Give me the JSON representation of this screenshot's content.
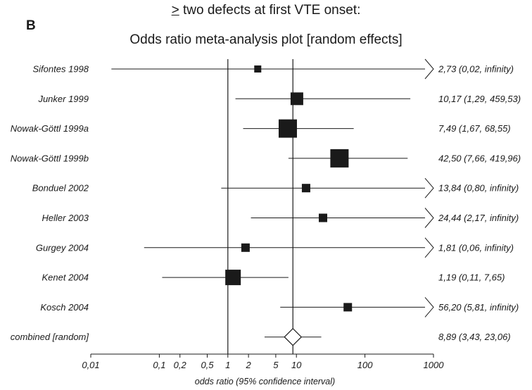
{
  "header": {
    "heading_symbol": ">",
    "heading_rest": " two defects at first VTE onset:",
    "panel_label": "B",
    "plot_title": "Odds ratio meta-analysis plot [random effects]"
  },
  "chart_data": {
    "type": "forest",
    "title": "Odds ratio meta-analysis plot [random effects]",
    "xlabel": "odds ratio (95% confidence interval)",
    "x_scale": "log",
    "xlim": [
      0.01,
      1000
    ],
    "x_ticks": [
      0.01,
      0.1,
      0.2,
      0.5,
      1,
      2,
      5,
      10,
      100,
      1000
    ],
    "x_tick_labels": [
      "0,01",
      "0,1",
      "0,2",
      "0,5",
      "1",
      "2",
      "5",
      "10",
      "100",
      "1000"
    ],
    "null_line": 1,
    "pooled_line": 8.89,
    "studies": [
      {
        "name": "Sifontes 1998",
        "or": 2.73,
        "lo": 0.02,
        "hi": null,
        "weight": 1.0,
        "label": "2,73 (0,02, infinity)"
      },
      {
        "name": "Junker 1999",
        "or": 10.17,
        "lo": 1.29,
        "hi": 459.53,
        "weight": 1.8,
        "label": "10,17 (1,29, 459,53)"
      },
      {
        "name": "Nowak-Göttl 1999a",
        "or": 7.49,
        "lo": 1.67,
        "hi": 68.55,
        "weight": 2.6,
        "label": "7,49 (1,67, 68,55)"
      },
      {
        "name": "Nowak-Göttl 1999b",
        "or": 42.5,
        "lo": 7.66,
        "hi": 419.96,
        "weight": 2.6,
        "label": "42,50 (7,66, 419,96)"
      },
      {
        "name": "Bonduel 2002",
        "or": 13.84,
        "lo": 0.8,
        "hi": null,
        "weight": 1.2,
        "label": "13,84 (0,80, infinity)"
      },
      {
        "name": "Heller 2003",
        "or": 24.44,
        "lo": 2.17,
        "hi": null,
        "weight": 1.2,
        "label": "24,44 (2,17, infinity)"
      },
      {
        "name": "Gurgey 2004",
        "or": 1.81,
        "lo": 0.06,
        "hi": null,
        "weight": 1.2,
        "label": "1,81 (0,06, infinity)"
      },
      {
        "name": "Kenet 2004",
        "or": 1.19,
        "lo": 0.11,
        "hi": 7.65,
        "weight": 2.2,
        "label": "1,19 (0,11, 7,65)"
      },
      {
        "name": "Kosch 2004",
        "or": 56.2,
        "lo": 5.81,
        "hi": null,
        "weight": 1.2,
        "label": "56,20 (5,81, infinity)"
      }
    ],
    "combined": {
      "name": "combined [random]",
      "or": 8.89,
      "lo": 3.43,
      "hi": 23.06,
      "label": "8,89 (3,43, 23,06)"
    }
  }
}
